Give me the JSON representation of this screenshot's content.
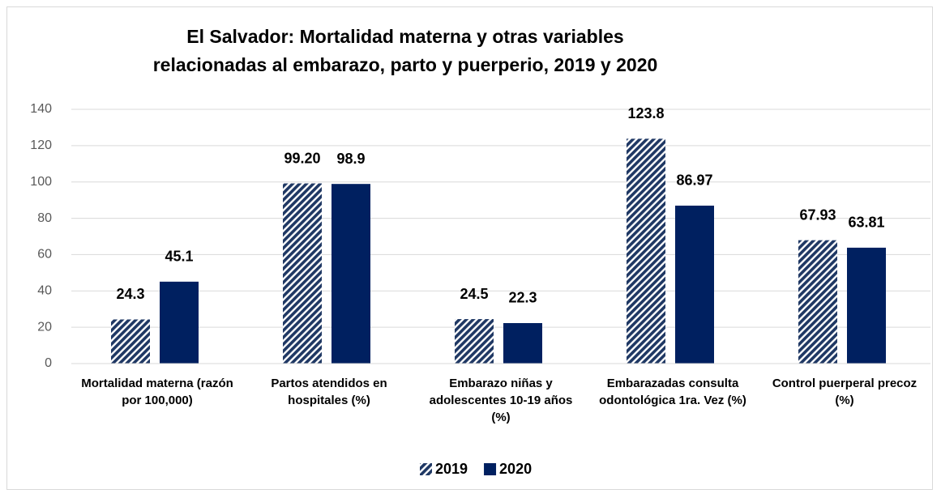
{
  "chart_data": {
    "type": "bar",
    "title": [
      "El Salvador: Mortalidad materna y otras variables",
      "relacionadas al embarazo, parto y puerperio, 2019 y 2020"
    ],
    "categories": [
      "Mortalidad materna (razón por 100,000)",
      "Partos atendidos en hospitales (%)",
      "Embarazo niñas y adolescentes 10-19 años (%)",
      "Embarazadas consulta odontológica 1ra. Vez (%)",
      "Control puerperal precoz (%)"
    ],
    "series": [
      {
        "name": "2019",
        "color": "#1f3864",
        "pattern": "hatch",
        "values": [
          24.3,
          99.2,
          24.5,
          123.8,
          67.93
        ],
        "value_labels": [
          "24.3",
          "99.20",
          "24.5",
          "123.8",
          "67.93"
        ]
      },
      {
        "name": "2020",
        "color": "#002060",
        "values": [
          45.1,
          98.9,
          22.3,
          86.97,
          63.81
        ]
      }
    ],
    "ylim": [
      0,
      140
    ],
    "yticks": [
      0,
      20,
      40,
      60,
      80,
      100,
      120,
      140
    ],
    "grid": true,
    "legend": "bottom"
  }
}
